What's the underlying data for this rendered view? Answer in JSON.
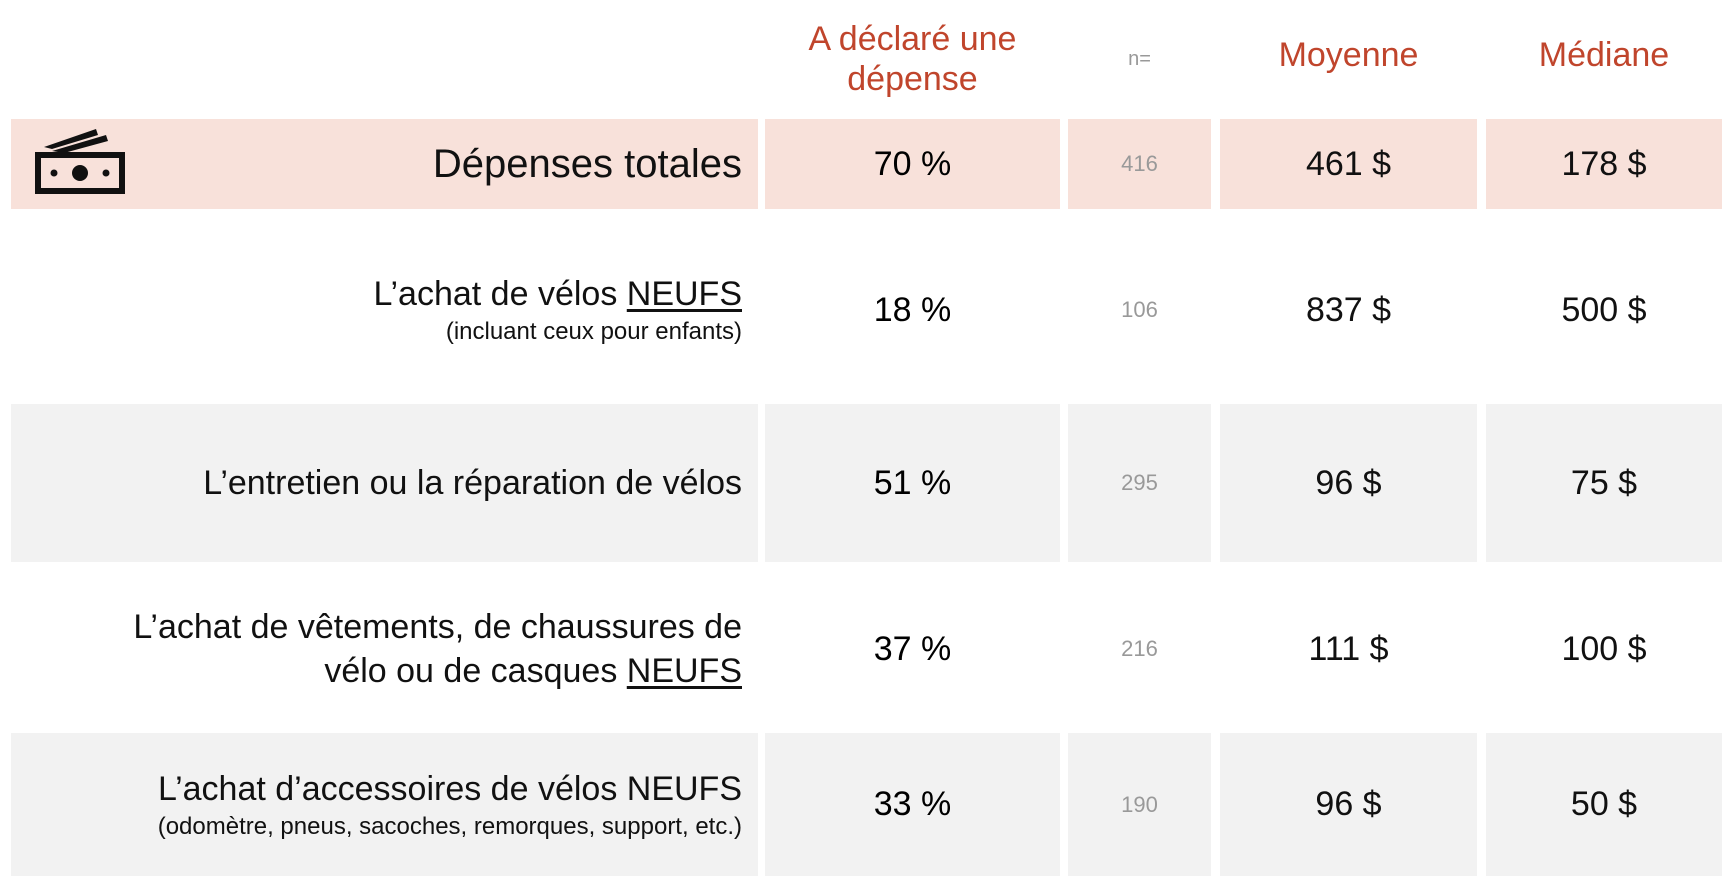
{
  "header": {
    "declared": "A déclaré une dépense",
    "n": "n=",
    "mean": "Moyenne",
    "median": "Médiane"
  },
  "rows": [
    {
      "lines": [
        {
          "text": "Dépenses totales"
        }
      ],
      "pct": "70 %",
      "n": "416",
      "mean": "461 $",
      "median": "178 $"
    },
    {
      "lines": [
        {
          "text": "L’achat de vélos ",
          "underlined": "NEUFS"
        },
        {
          "text": "(incluant ceux pour enfants)"
        }
      ],
      "pct": "18 %",
      "n": "106",
      "mean": "837 $",
      "median": "500 $"
    },
    {
      "lines": [
        {
          "text": "L’entretien ou la réparation de vélos"
        }
      ],
      "pct": "51 %",
      "n": "295",
      "mean": "96 $",
      "median": "75 $"
    },
    {
      "lines": [
        {
          "text": "L’achat de vêtements, de chaussures de"
        },
        {
          "text": "vélo ou de casques ",
          "underlined": "NEUFS"
        }
      ],
      "pct": "37 %",
      "n": "216",
      "mean": "111 $",
      "median": "100 $"
    },
    {
      "lines": [
        {
          "text": "L’achat d’accessoires de vélos NEUFS"
        },
        {
          "text": "(odomètre, pneus, sacoches, remorques, support, etc.)"
        }
      ],
      "pct": "33 %",
      "n": "190",
      "mean": "96 $",
      "median": "50 $"
    }
  ]
}
